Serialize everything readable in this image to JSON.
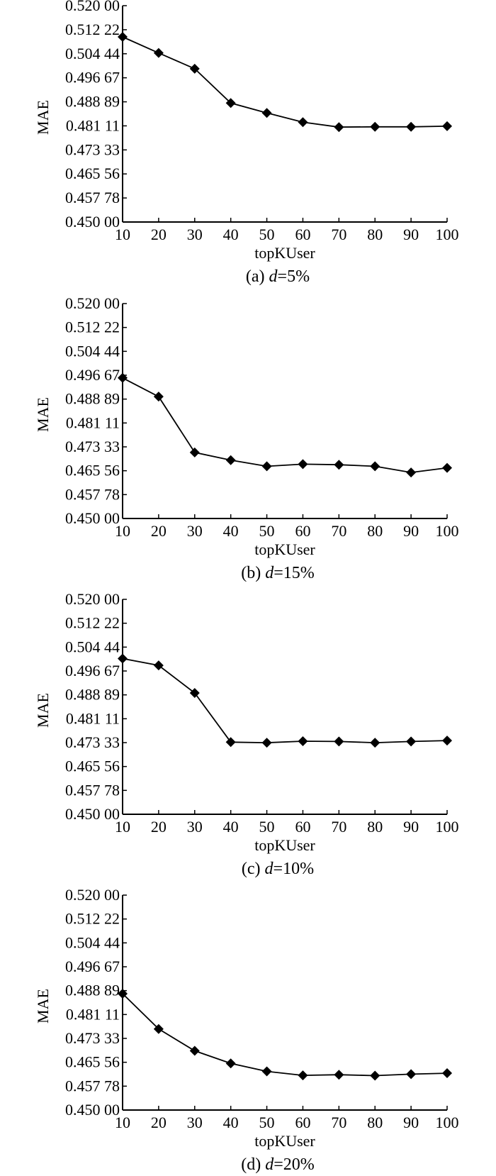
{
  "chart_data": [
    {
      "type": "line",
      "caption": {
        "prefix": "(a) ",
        "var": "d",
        "suffix": "=5%"
      },
      "xlabel": "topKUser",
      "ylabel": "MAE",
      "x": [
        10,
        20,
        30,
        40,
        50,
        60,
        70,
        80,
        90,
        100
      ],
      "xticks": [
        "10",
        "20",
        "30",
        "40",
        "50",
        "60",
        "70",
        "80",
        "90",
        "100"
      ],
      "yticks": [
        "0.450 00",
        "0.457 78",
        "0.465 56",
        "0.473 33",
        "0.481 11",
        "0.488 89",
        "0.496 67",
        "0.504 44",
        "0.512 22",
        "0.520 00"
      ],
      "ylim": [
        0.45,
        0.52
      ],
      "grid": false,
      "marker": "diamond",
      "series": [
        {
          "values": [
            0.5099,
            0.5047,
            0.4996,
            0.4885,
            0.4853,
            0.4823,
            0.4807,
            0.4808,
            0.4808,
            0.481
          ]
        }
      ]
    },
    {
      "type": "line",
      "caption": {
        "prefix": "(b) ",
        "var": "d",
        "suffix": "=15%"
      },
      "xlabel": "topKUser",
      "ylabel": "MAE",
      "x": [
        10,
        20,
        30,
        40,
        50,
        60,
        70,
        80,
        90,
        100
      ],
      "xticks": [
        "10",
        "20",
        "30",
        "40",
        "50",
        "60",
        "70",
        "80",
        "90",
        "100"
      ],
      "yticks": [
        "0.450 00",
        "0.457 78",
        "0.465 56",
        "0.473 33",
        "0.481 11",
        "0.488 89",
        "0.496 67",
        "0.504 44",
        "0.512 22",
        "0.520 00"
      ],
      "ylim": [
        0.45,
        0.52
      ],
      "grid": false,
      "marker": "diamond",
      "series": [
        {
          "values": [
            0.4958,
            0.4897,
            0.4715,
            0.469,
            0.467,
            0.4677,
            0.4675,
            0.467,
            0.465,
            0.4665
          ]
        }
      ]
    },
    {
      "type": "line",
      "caption": {
        "prefix": "(c) ",
        "var": "d",
        "suffix": "=10%"
      },
      "xlabel": "topKUser",
      "ylabel": "MAE",
      "x": [
        10,
        20,
        30,
        40,
        50,
        60,
        70,
        80,
        90,
        100
      ],
      "xticks": [
        "10",
        "20",
        "30",
        "40",
        "50",
        "60",
        "70",
        "80",
        "90",
        "100"
      ],
      "yticks": [
        "0.450 00",
        "0.457 78",
        "0.465 56",
        "0.473 33",
        "0.481 11",
        "0.488 89",
        "0.496 67",
        "0.504 44",
        "0.512 22",
        "0.520 00"
      ],
      "ylim": [
        0.45,
        0.52
      ],
      "grid": false,
      "marker": "diamond",
      "series": [
        {
          "values": [
            0.5007,
            0.4985,
            0.4895,
            0.4735,
            0.4733,
            0.4738,
            0.4737,
            0.4733,
            0.4737,
            0.474
          ]
        }
      ]
    },
    {
      "type": "line",
      "caption": {
        "prefix": "(d) ",
        "var": "d",
        "suffix": "=20%"
      },
      "xlabel": "topKUser",
      "ylabel": "MAE",
      "x": [
        10,
        20,
        30,
        40,
        50,
        60,
        70,
        80,
        90,
        100
      ],
      "xticks": [
        "10",
        "20",
        "30",
        "40",
        "50",
        "60",
        "70",
        "80",
        "90",
        "100"
      ],
      "yticks": [
        "0.450 00",
        "0.457 78",
        "0.465 56",
        "0.473 33",
        "0.481 11",
        "0.488 89",
        "0.496 67",
        "0.504 44",
        "0.512 22",
        "0.520 00"
      ],
      "ylim": [
        0.45,
        0.52
      ],
      "grid": false,
      "marker": "diamond",
      "series": [
        {
          "values": [
            0.4879,
            0.4764,
            0.4693,
            0.4652,
            0.4626,
            0.4613,
            0.4615,
            0.4612,
            0.4617,
            0.462
          ]
        }
      ]
    }
  ]
}
